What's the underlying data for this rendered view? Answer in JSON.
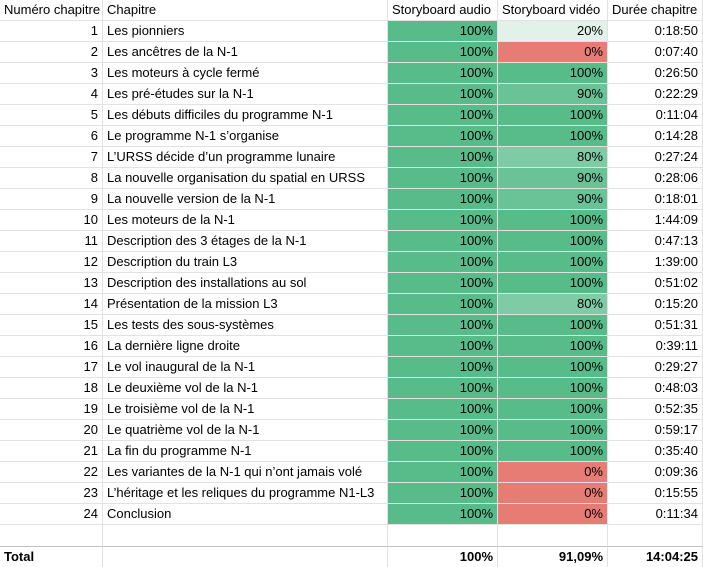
{
  "sheet": {
    "columns": [
      {
        "label": "Numéro chapitre"
      },
      {
        "label": "Chapitre"
      },
      {
        "label": "Storyboard audio"
      },
      {
        "label": "Storyboard vidéo"
      },
      {
        "label": "Durée chapitre"
      }
    ],
    "rows": [
      {
        "num": "1",
        "title": "Les pionniers",
        "audio": "100%",
        "video": "20%",
        "duration": "0:18:50"
      },
      {
        "num": "2",
        "title": "Les ancêtres de la N-1",
        "audio": "100%",
        "video": "0%",
        "duration": "0:07:40"
      },
      {
        "num": "3",
        "title": "Les moteurs à cycle fermé",
        "audio": "100%",
        "video": "100%",
        "duration": "0:26:50"
      },
      {
        "num": "4",
        "title": "Les pré-études sur la N-1",
        "audio": "100%",
        "video": "90%",
        "duration": "0:22:29"
      },
      {
        "num": "5",
        "title": "Les débuts difficiles du programme N-1",
        "audio": "100%",
        "video": "100%",
        "duration": "0:11:04"
      },
      {
        "num": "6",
        "title": "Le programme N-1 s’organise",
        "audio": "100%",
        "video": "100%",
        "duration": "0:14:28"
      },
      {
        "num": "7",
        "title": "L’URSS décide d’un programme lunaire",
        "audio": "100%",
        "video": "80%",
        "duration": "0:27:24"
      },
      {
        "num": "8",
        "title": "La nouvelle organisation du spatial en URSS",
        "audio": "100%",
        "video": "90%",
        "duration": "0:28:06"
      },
      {
        "num": "9",
        "title": "La nouvelle version de la N-1",
        "audio": "100%",
        "video": "90%",
        "duration": "0:18:01"
      },
      {
        "num": "10",
        "title": "Les moteurs de la N-1",
        "audio": "100%",
        "video": "100%",
        "duration": "1:44:09"
      },
      {
        "num": "11",
        "title": "Description des 3 étages de la N-1",
        "audio": "100%",
        "video": "100%",
        "duration": "0:47:13"
      },
      {
        "num": "12",
        "title": "Description du train L3",
        "audio": "100%",
        "video": "100%",
        "duration": "1:39:00"
      },
      {
        "num": "13",
        "title": "Description des installations au sol",
        "audio": "100%",
        "video": "100%",
        "duration": "0:51:02"
      },
      {
        "num": "14",
        "title": "Présentation de la mission L3",
        "audio": "100%",
        "video": "80%",
        "duration": "0:15:20"
      },
      {
        "num": "15",
        "title": "Les tests des sous-systèmes",
        "audio": "100%",
        "video": "100%",
        "duration": "0:51:31"
      },
      {
        "num": "16",
        "title": "La dernière ligne droite",
        "audio": "100%",
        "video": "100%",
        "duration": "0:39:11"
      },
      {
        "num": "17",
        "title": "Le vol inaugural de la N-1",
        "audio": "100%",
        "video": "100%",
        "duration": "0:29:27"
      },
      {
        "num": "18",
        "title": "Le deuxième vol de la N-1",
        "audio": "100%",
        "video": "100%",
        "duration": "0:48:03"
      },
      {
        "num": "19",
        "title": "Le troisième vol de la N-1",
        "audio": "100%",
        "video": "100%",
        "duration": "0:52:35"
      },
      {
        "num": "20",
        "title": "Le quatrième vol de la N-1",
        "audio": "100%",
        "video": "100%",
        "duration": "0:59:17"
      },
      {
        "num": "21",
        "title": "La fin du programme N-1",
        "audio": "100%",
        "video": "100%",
        "duration": "0:35:40"
      },
      {
        "num": "22",
        "title": "Les variantes de la N-1 qui n’ont jamais volé",
        "audio": "100%",
        "video": "0%",
        "duration": "0:09:36"
      },
      {
        "num": "23",
        "title": "L’héritage et les reliques du programme N1-L3",
        "audio": "100%",
        "video": "0%",
        "duration": "0:15:55"
      },
      {
        "num": "24",
        "title": "Conclusion",
        "audio": "100%",
        "video": "0%",
        "duration": "0:11:34"
      }
    ],
    "total": {
      "label": "Total",
      "audio": "100%",
      "video": "91,09%",
      "duration": "14:04:25"
    }
  },
  "status_colors": {
    "100%": "#57BB8A",
    "90%": "#6AC297",
    "80%": "#7ECBA5",
    "20%": "#E2F1E9",
    "0%": "#E67C73"
  }
}
